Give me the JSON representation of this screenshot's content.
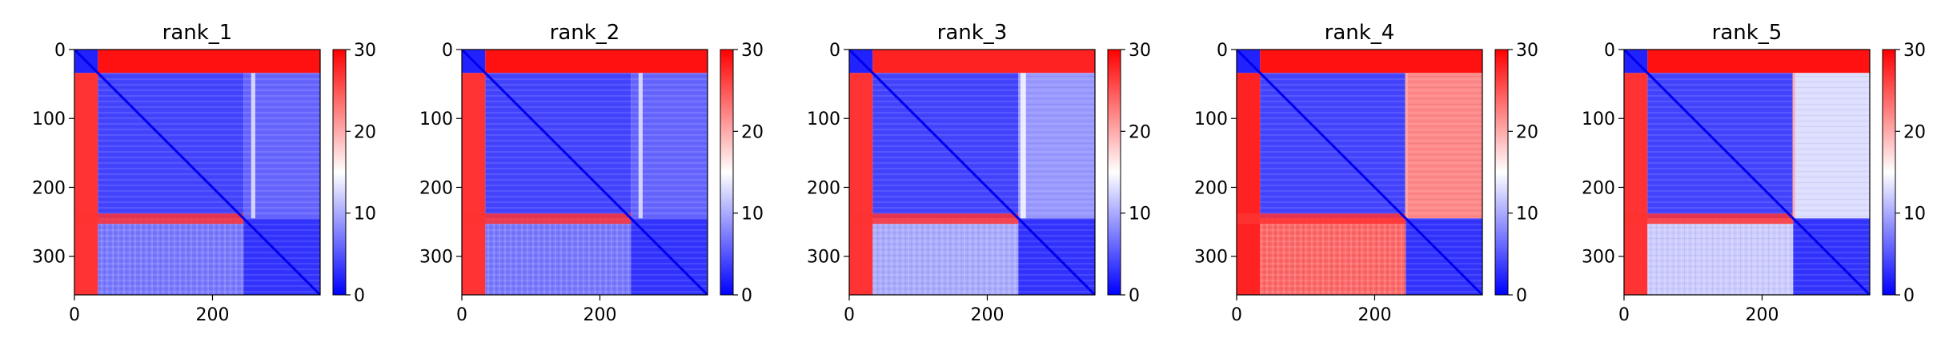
{
  "chart_data": [
    {
      "type": "heatmap",
      "title": "rank_1",
      "xlabel": "",
      "ylabel": "",
      "xlim": [
        0,
        356
      ],
      "ylim": [
        356,
        0
      ],
      "x_ticks": [
        0,
        200
      ],
      "y_ticks": [
        0,
        100,
        200,
        300
      ],
      "colorbar": {
        "ticks": [
          0,
          10,
          20,
          30
        ],
        "range": [
          0,
          30
        ],
        "colormap": "bwr"
      },
      "regions": [
        {
          "x": [
            0,
            34
          ],
          "y": [
            0,
            34
          ],
          "value": 2
        },
        {
          "x": [
            34,
            356
          ],
          "y": [
            0,
            34
          ],
          "value": 29
        },
        {
          "x": [
            0,
            34
          ],
          "y": [
            34,
            356
          ],
          "value": 27
        },
        {
          "x": [
            34,
            245
          ],
          "y": [
            34,
            245
          ],
          "value": 4
        },
        {
          "x": [
            245,
            356
          ],
          "y": [
            34,
            245
          ],
          "value": 6
        },
        {
          "x": [
            34,
            245
          ],
          "y": [
            245,
            356
          ],
          "value": 7
        },
        {
          "x": [
            245,
            356
          ],
          "y": [
            245,
            356
          ],
          "value": 3
        }
      ],
      "band_row_y": [
        238,
        253
      ],
      "band_row_value": 27,
      "stripe_x": [
        256,
        262
      ],
      "stripe_value": 14
    },
    {
      "type": "heatmap",
      "title": "rank_2",
      "xlabel": "",
      "ylabel": "",
      "xlim": [
        0,
        356
      ],
      "ylim": [
        356,
        0
      ],
      "x_ticks": [
        0,
        200
      ],
      "y_ticks": [
        0,
        100,
        200,
        300
      ],
      "colorbar": {
        "ticks": [
          0,
          10,
          20,
          30
        ],
        "range": [
          0,
          30
        ],
        "colormap": "bwr"
      },
      "regions": [
        {
          "x": [
            0,
            34
          ],
          "y": [
            0,
            34
          ],
          "value": 2
        },
        {
          "x": [
            34,
            356
          ],
          "y": [
            0,
            34
          ],
          "value": 29
        },
        {
          "x": [
            0,
            34
          ],
          "y": [
            34,
            356
          ],
          "value": 27
        },
        {
          "x": [
            34,
            245
          ],
          "y": [
            34,
            245
          ],
          "value": 4
        },
        {
          "x": [
            245,
            356
          ],
          "y": [
            34,
            245
          ],
          "value": 6
        },
        {
          "x": [
            34,
            245
          ],
          "y": [
            245,
            356
          ],
          "value": 7
        },
        {
          "x": [
            245,
            356
          ],
          "y": [
            245,
            356
          ],
          "value": 3
        }
      ],
      "band_row_y": [
        238,
        253
      ],
      "band_row_value": 27,
      "stripe_x": [
        256,
        262
      ],
      "stripe_value": 14
    },
    {
      "type": "heatmap",
      "title": "rank_3",
      "xlabel": "",
      "ylabel": "",
      "xlim": [
        0,
        356
      ],
      "ylim": [
        356,
        0
      ],
      "x_ticks": [
        0,
        200
      ],
      "y_ticks": [
        0,
        100,
        200,
        300
      ],
      "colorbar": {
        "ticks": [
          0,
          10,
          20,
          30
        ],
        "range": [
          0,
          30
        ],
        "colormap": "bwr"
      },
      "regions": [
        {
          "x": [
            0,
            34
          ],
          "y": [
            0,
            34
          ],
          "value": 2
        },
        {
          "x": [
            34,
            356
          ],
          "y": [
            0,
            34
          ],
          "value": 28
        },
        {
          "x": [
            0,
            34
          ],
          "y": [
            34,
            356
          ],
          "value": 27
        },
        {
          "x": [
            34,
            245
          ],
          "y": [
            34,
            245
          ],
          "value": 4
        },
        {
          "x": [
            245,
            356
          ],
          "y": [
            34,
            245
          ],
          "value": 9
        },
        {
          "x": [
            34,
            245
          ],
          "y": [
            245,
            356
          ],
          "value": 10
        },
        {
          "x": [
            245,
            356
          ],
          "y": [
            245,
            356
          ],
          "value": 3
        }
      ],
      "band_row_y": [
        238,
        253
      ],
      "band_row_value": 27,
      "stripe_x": [
        248,
        256
      ],
      "stripe_value": 15
    },
    {
      "type": "heatmap",
      "title": "rank_4",
      "xlabel": "",
      "ylabel": "",
      "xlim": [
        0,
        356
      ],
      "ylim": [
        356,
        0
      ],
      "x_ticks": [
        0,
        200
      ],
      "y_ticks": [
        0,
        100,
        200,
        300
      ],
      "colorbar": {
        "ticks": [
          0,
          10,
          20,
          30
        ],
        "range": [
          0,
          30
        ],
        "colormap": "bwr"
      },
      "regions": [
        {
          "x": [
            0,
            34
          ],
          "y": [
            0,
            34
          ],
          "value": 2
        },
        {
          "x": [
            34,
            356
          ],
          "y": [
            0,
            34
          ],
          "value": 29
        },
        {
          "x": [
            0,
            34
          ],
          "y": [
            34,
            356
          ],
          "value": 28
        },
        {
          "x": [
            34,
            245
          ],
          "y": [
            34,
            245
          ],
          "value": 4
        },
        {
          "x": [
            245,
            356
          ],
          "y": [
            34,
            245
          ],
          "value": 22
        },
        {
          "x": [
            34,
            245
          ],
          "y": [
            245,
            356
          ],
          "value": 24
        },
        {
          "x": [
            245,
            356
          ],
          "y": [
            245,
            356
          ],
          "value": 3
        }
      ],
      "band_row_y": [
        238,
        253
      ],
      "band_row_value": 27,
      "stripe_x": [
        244,
        248
      ],
      "stripe_value": 20
    },
    {
      "type": "heatmap",
      "title": "rank_5",
      "xlabel": "",
      "ylabel": "",
      "xlim": [
        0,
        356
      ],
      "ylim": [
        356,
        0
      ],
      "x_ticks": [
        0,
        200
      ],
      "y_ticks": [
        0,
        100,
        200,
        300
      ],
      "colorbar": {
        "ticks": [
          0,
          10,
          20,
          30
        ],
        "range": [
          0,
          30
        ],
        "colormap": "bwr"
      },
      "regions": [
        {
          "x": [
            0,
            34
          ],
          "y": [
            0,
            34
          ],
          "value": 2
        },
        {
          "x": [
            34,
            356
          ],
          "y": [
            0,
            34
          ],
          "value": 29
        },
        {
          "x": [
            0,
            34
          ],
          "y": [
            34,
            356
          ],
          "value": 27
        },
        {
          "x": [
            34,
            245
          ],
          "y": [
            34,
            245
          ],
          "value": 4
        },
        {
          "x": [
            245,
            356
          ],
          "y": [
            34,
            245
          ],
          "value": 13
        },
        {
          "x": [
            34,
            245
          ],
          "y": [
            245,
            356
          ],
          "value": 12
        },
        {
          "x": [
            245,
            356
          ],
          "y": [
            245,
            356
          ],
          "value": 3
        }
      ],
      "band_row_y": [
        238,
        253
      ],
      "band_row_value": 27,
      "stripe_x": [
        244,
        248
      ],
      "stripe_value": 20
    }
  ]
}
